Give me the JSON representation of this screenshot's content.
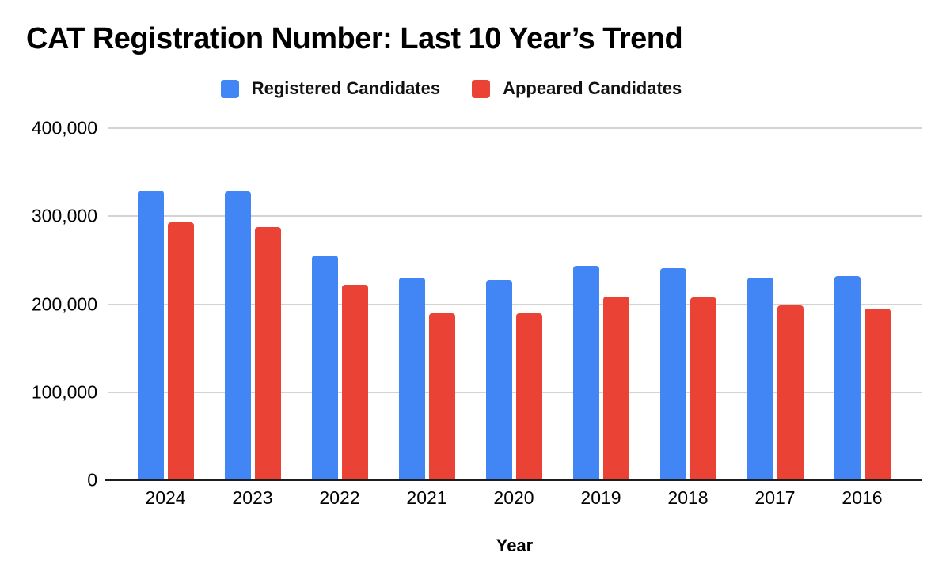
{
  "chart_data": {
    "type": "bar",
    "title": "CAT Registration Number: Last 10 Year’s Trend",
    "xlabel": "Year",
    "ylabel": "",
    "categories": [
      "2024",
      "2023",
      "2022",
      "2021",
      "2020",
      "2019",
      "2018",
      "2017",
      "2016"
    ],
    "series": [
      {
        "name": "Registered Candidates",
        "color": "#4285F4",
        "values": [
          329000,
          328000,
          255000,
          230000,
          227000,
          244000,
          241000,
          230000,
          232000
        ]
      },
      {
        "name": "Appeared Candidates",
        "color": "#EA4335",
        "values": [
          293000,
          288000,
          222000,
          190000,
          190000,
          209000,
          208000,
          199000,
          195000
        ]
      }
    ],
    "ylim": [
      0,
      400000
    ],
    "y_ticks": [
      0,
      100000,
      200000,
      300000,
      400000
    ],
    "y_tick_labels": [
      "0",
      "100,000",
      "200,000",
      "300,000",
      "400,000"
    ],
    "grid": true,
    "legend_position": "top",
    "axis_color": "#1c1c1c",
    "gridline_color": "#d3d3d3"
  }
}
